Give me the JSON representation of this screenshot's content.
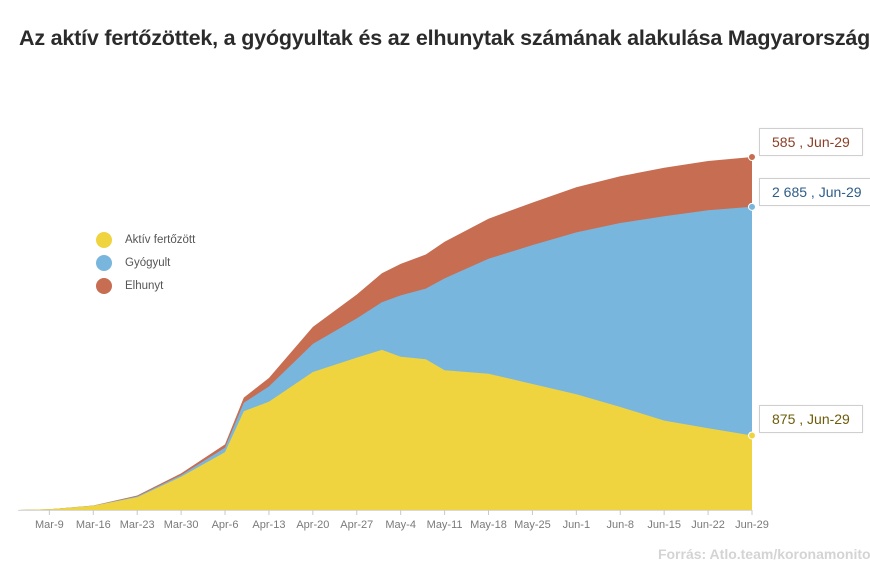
{
  "title": "Az aktív fertőzöttek, a gyógyultak és az elhunytak számának alakulása Magyarországon",
  "source": "Forrás: Atlo.team/koronamonitor",
  "legend": [
    {
      "label": "Aktív fertőzött",
      "color": "#f0d43f"
    },
    {
      "label": "Gyógyult",
      "color": "#79b6de"
    },
    {
      "label": "Elhunyt",
      "color": "#c76d52"
    }
  ],
  "callouts": {
    "deaths": "585 , Jun-29",
    "recovered": "2 685 , Jun-29",
    "active": "875 , Jun-29"
  },
  "chart_data": {
    "type": "area",
    "stacked": true,
    "x_start": "2020-03-04",
    "x_end": "2020-06-29",
    "x_ticks": [
      "Mar-9",
      "Mar-16",
      "Mar-23",
      "Mar-30",
      "Apr-6",
      "Apr-13",
      "Apr-20",
      "Apr-27",
      "May-4",
      "May-11",
      "May-18",
      "May-25",
      "Jun-1",
      "Jun-8",
      "Jun-15",
      "Jun-22",
      "Jun-29"
    ],
    "grid": false,
    "legend_position": "left",
    "series": [
      {
        "name": "Aktív fertőzött",
        "color": "#f0d43f",
        "x": [
          "2020-03-04",
          "2020-03-09",
          "2020-03-16",
          "2020-03-23",
          "2020-03-30",
          "2020-04-06",
          "2020-04-09",
          "2020-04-13",
          "2020-04-20",
          "2020-04-27",
          "2020-05-01",
          "2020-05-04",
          "2020-05-08",
          "2020-05-11",
          "2020-05-18",
          "2020-05-25",
          "2020-06-01",
          "2020-06-08",
          "2020-06-15",
          "2020-06-22",
          "2020-06-29"
        ],
        "values": [
          0,
          8,
          50,
          150,
          390,
          680,
          1160,
          1270,
          1620,
          1790,
          1880,
          1800,
          1770,
          1640,
          1600,
          1480,
          1360,
          1210,
          1050,
          960,
          875
        ]
      },
      {
        "name": "Gyógyult",
        "color": "#79b6de",
        "x": [
          "2020-03-04",
          "2020-03-09",
          "2020-03-16",
          "2020-03-23",
          "2020-03-30",
          "2020-04-06",
          "2020-04-09",
          "2020-04-13",
          "2020-04-20",
          "2020-04-27",
          "2020-05-01",
          "2020-05-04",
          "2020-05-08",
          "2020-05-11",
          "2020-05-18",
          "2020-05-25",
          "2020-06-01",
          "2020-06-08",
          "2020-06-15",
          "2020-06-22",
          "2020-06-29"
        ],
        "values": [
          0,
          0,
          2,
          10,
          20,
          50,
          100,
          180,
          330,
          460,
          560,
          720,
          830,
          1080,
          1350,
          1630,
          1900,
          2160,
          2400,
          2560,
          2685
        ]
      },
      {
        "name": "Elhunyt",
        "color": "#c76d52",
        "x": [
          "2020-03-04",
          "2020-03-09",
          "2020-03-16",
          "2020-03-23",
          "2020-03-30",
          "2020-04-06",
          "2020-04-09",
          "2020-04-13",
          "2020-04-20",
          "2020-04-27",
          "2020-05-01",
          "2020-05-04",
          "2020-05-08",
          "2020-05-11",
          "2020-05-18",
          "2020-05-25",
          "2020-06-01",
          "2020-06-08",
          "2020-06-15",
          "2020-06-22",
          "2020-06-29"
        ],
        "values": [
          0,
          0,
          1,
          10,
          20,
          40,
          60,
          100,
          200,
          280,
          340,
          370,
          400,
          430,
          470,
          500,
          530,
          550,
          568,
          578,
          585
        ]
      }
    ]
  }
}
